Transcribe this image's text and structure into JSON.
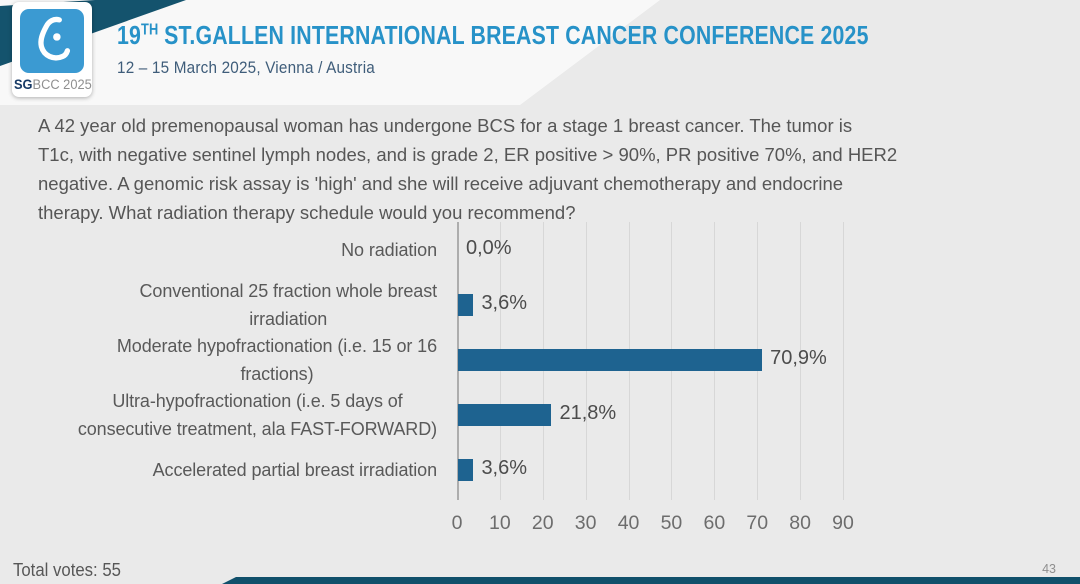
{
  "colors": {
    "slide_background": "#eaeaea",
    "accent_blue": "#2792c8",
    "logo_blue": "#3b9ad2",
    "dark_teal": "#14536d",
    "bar_blue": "#1e6390",
    "text_gray": "#595959"
  },
  "header": {
    "logo": {
      "icon": "sgbcc-breast-logo-icon",
      "text_bold": "SG",
      "text_rest": "BCC 2025"
    },
    "title_num": "19",
    "title_sup": "TH",
    "title_main": "ST.GALLEN INTERNATIONAL BREAST CANCER CONFERENCE 2025",
    "subtitle": "12 – 15 March 2025, Vienna / Austria"
  },
  "question": {
    "lines": [
      "A 42 year old premenopausal woman has undergone BCS for a stage 1 breast cancer.  The tumor is",
      "T1c, with negative sentinel lymph nodes, and is grade 2, ER positive > 90%, PR positive 70%, and HER2",
      "negative.  A genomic risk assay is 'high' and she will receive adjuvant chemotherapy and endocrine",
      "therapy. What radiation therapy schedule would you recommend?"
    ]
  },
  "chart_data": {
    "type": "bar",
    "orientation": "horizontal",
    "categories": [
      [
        "No radiation"
      ],
      [
        "Conventional 25 fraction whole breast",
        "irradiation"
      ],
      [
        "Moderate hypofractionation (i.e. 15 or 16",
        "fractions)"
      ],
      [
        "Ultra-hypofractionation (i.e. 5 days of",
        "consecutive treatment, ala FAST-FORWARD)"
      ],
      [
        "Accelerated partial breast irradiation"
      ]
    ],
    "values": [
      0.0,
      3.6,
      70.9,
      21.8,
      3.6
    ],
    "value_labels": [
      "0,0%",
      "3,6%",
      "70,9%",
      "21,8%",
      "3,6%"
    ],
    "xlim": [
      0,
      90
    ],
    "ticks": [
      0,
      10,
      20,
      30,
      40,
      50,
      60,
      70,
      80,
      90
    ],
    "grid": true,
    "legend": "none",
    "bar_color": "#1e6390",
    "title": ""
  },
  "footer": {
    "total_votes": "Total votes: 55",
    "page_number": "43"
  }
}
